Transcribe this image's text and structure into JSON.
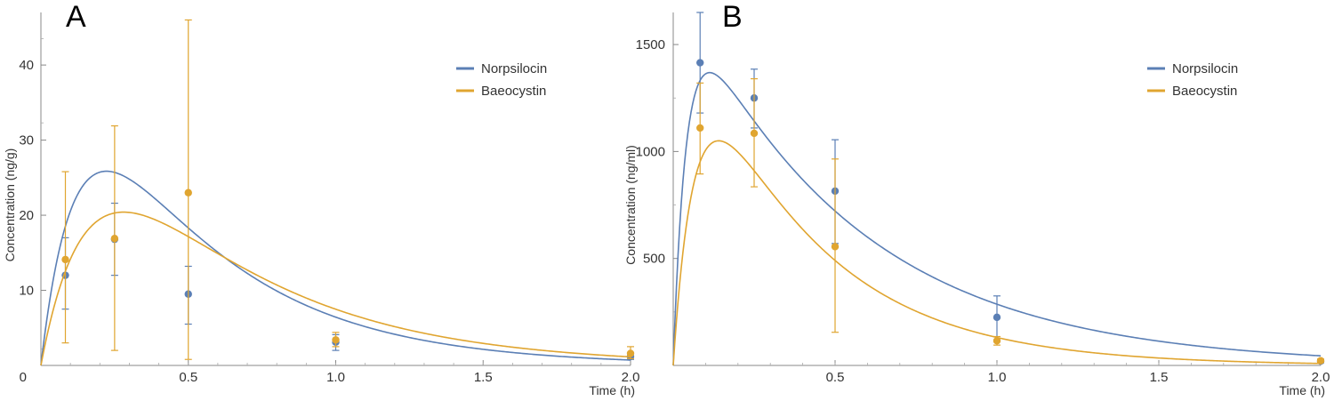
{
  "colors": {
    "norpsilocin": "#5b7fb5",
    "baeocystin": "#e0a530",
    "axis": "#888888"
  },
  "chart_data": [
    {
      "type": "line",
      "panel_label": "A",
      "xlabel": "Time (h)",
      "ylabel": "Concentration (ng/g)",
      "xlim": [
        0,
        2.0
      ],
      "ylim": [
        0,
        47
      ],
      "x_ticks": [
        "0.5",
        "1.0",
        "1.5",
        "2.0"
      ],
      "y_ticks": [
        "0",
        "10",
        "20",
        "30",
        "40"
      ],
      "grid": false,
      "legend_position": "top-right",
      "series": [
        {
          "name": "Norpsilocin",
          "color": "#5b7fb5",
          "points": [
            {
              "x": 0.083,
              "y": 12.0,
              "err_low": 7.5,
              "err_high": 17.0
            },
            {
              "x": 0.25,
              "y": 16.8,
              "err_low": 12.0,
              "err_high": 21.6
            },
            {
              "x": 0.5,
              "y": 9.5,
              "err_low": 5.5,
              "err_high": 13.2
            },
            {
              "x": 1.0,
              "y": 3.1,
              "err_low": 2.0,
              "err_high": 4.1
            },
            {
              "x": 2.0,
              "y": 1.2,
              "err_low": 0.8,
              "err_high": 1.6
            }
          ],
          "fit": {
            "A": 58.2,
            "ka": 8.0,
            "ke": 2.2
          }
        },
        {
          "name": "Baeocystin",
          "color": "#e0a530",
          "points": [
            {
              "x": 0.083,
              "y": 14.1,
              "err_low": 3.0,
              "err_high": 25.8
            },
            {
              "x": 0.25,
              "y": 16.9,
              "err_low": 2.0,
              "err_high": 31.9
            },
            {
              "x": 0.5,
              "y": 23.0,
              "err_low": 0.8,
              "err_high": 46.0
            },
            {
              "x": 1.0,
              "y": 3.4,
              "err_low": 2.5,
              "err_high": 4.4
            },
            {
              "x": 2.0,
              "y": 1.6,
              "err_low": 0.9,
              "err_high": 2.5
            }
          ],
          "fit": {
            "A": 50.9,
            "ka": 6.0,
            "ke": 1.9
          }
        }
      ]
    },
    {
      "type": "line",
      "panel_label": "B",
      "xlabel": "Time (h)",
      "ylabel": "Concentration (ng/ml)",
      "xlim": [
        0,
        2.0
      ],
      "ylim": [
        0,
        1650
      ],
      "x_ticks": [
        "0.5",
        "1.0",
        "1.5",
        "2.0"
      ],
      "y_ticks": [
        "500",
        "1000",
        "1500"
      ],
      "grid": false,
      "legend_position": "top-right",
      "series": [
        {
          "name": "Norpsilocin",
          "color": "#5b7fb5",
          "points": [
            {
              "x": 0.083,
              "y": 1415,
              "err_low": 1180,
              "err_high": 1650
            },
            {
              "x": 0.25,
              "y": 1250,
              "err_low": 1110,
              "err_high": 1385
            },
            {
              "x": 0.5,
              "y": 815,
              "err_low": 570,
              "err_high": 1055
            },
            {
              "x": 1.0,
              "y": 225,
              "err_low": 120,
              "err_high": 325
            },
            {
              "x": 2.0,
              "y": 20,
              "err_low": 12,
              "err_high": 28
            }
          ],
          "fit": {
            "A": 1820,
            "ka": 25.0,
            "ke": 1.85
          }
        },
        {
          "name": "Baeocystin",
          "color": "#e0a530",
          "points": [
            {
              "x": 0.083,
              "y": 1110,
              "err_low": 895,
              "err_high": 1320
            },
            {
              "x": 0.25,
              "y": 1085,
              "err_low": 835,
              "err_high": 1340
            },
            {
              "x": 0.5,
              "y": 555,
              "err_low": 155,
              "err_high": 965
            },
            {
              "x": 1.0,
              "y": 115,
              "err_low": 95,
              "err_high": 135
            },
            {
              "x": 2.0,
              "y": 22,
              "err_low": 15,
              "err_high": 30
            }
          ],
          "fit": {
            "A": 1850,
            "ka": 15.0,
            "ke": 2.65
          }
        }
      ]
    }
  ]
}
